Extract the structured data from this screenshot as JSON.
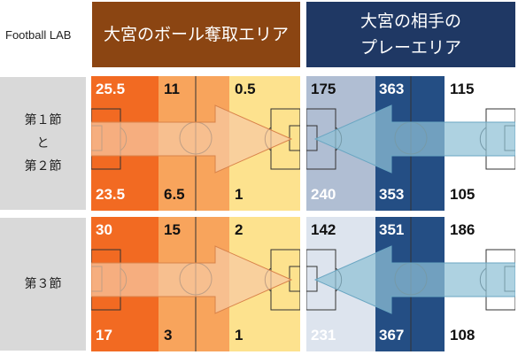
{
  "brand": "Football LAB",
  "headers": {
    "left": "大宮のボール奪取エリア",
    "right_line1": "大宮の相手の",
    "right_line2": "プレーエリア"
  },
  "colors": {
    "left_header": "#8b4512",
    "right_header": "#1f3864",
    "left_arrow": "#f6c9a4",
    "right_arrow": "#8fc1d6"
  },
  "rows": [
    {
      "label_line1": "第１節",
      "label_line2": "と",
      "label_line3": "第２節",
      "left": {
        "zone_colors": [
          "#f26a22",
          "#f8a45c",
          "#fde28e"
        ],
        "top": [
          "25.5",
          "11",
          "0.5"
        ],
        "bottom": [
          "23.5",
          "6.5",
          "1"
        ]
      },
      "right": {
        "zone_colors": [
          "#b0bed3",
          "#244e84",
          "#ffffff"
        ],
        "top": [
          "175",
          "363",
          "115"
        ],
        "bottom": [
          "240",
          "353",
          "105"
        ]
      }
    },
    {
      "label_line1": "第３節",
      "left": {
        "zone_colors": [
          "#f26a22",
          "#f8a45c",
          "#fde28e"
        ],
        "top": [
          "30",
          "15",
          "2"
        ],
        "bottom": [
          "17",
          "3",
          "1"
        ]
      },
      "right": {
        "zone_colors": [
          "#dde4ee",
          "#244e84",
          "#ffffff"
        ],
        "top": [
          "142",
          "351",
          "186"
        ],
        "bottom": [
          "231",
          "367",
          "108"
        ]
      }
    }
  ]
}
